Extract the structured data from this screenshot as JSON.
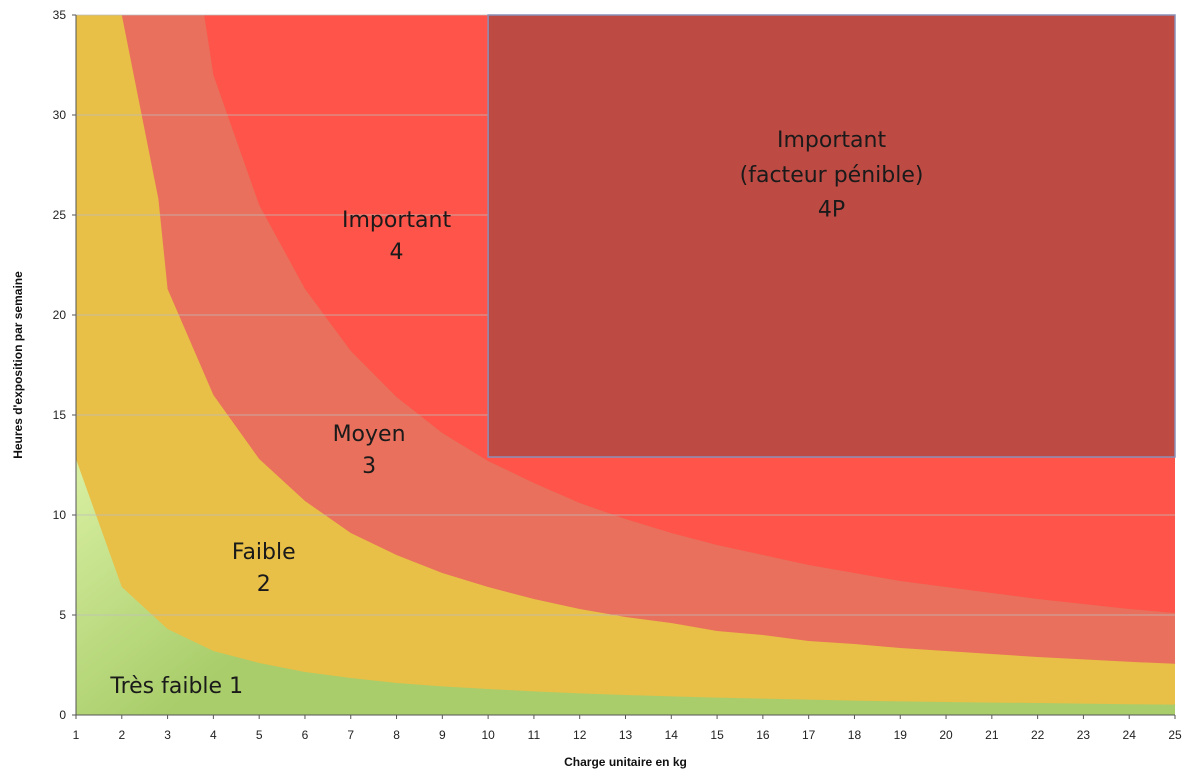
{
  "chart_data": {
    "type": "area",
    "xlabel": "Charge unitaire en kg",
    "ylabel": "Heures d'exposition par semaine",
    "xlim": [
      1,
      25
    ],
    "ylim": [
      0,
      35
    ],
    "x_ticks": [
      1,
      2,
      3,
      4,
      5,
      6,
      7,
      8,
      9,
      10,
      11,
      12,
      13,
      14,
      15,
      16,
      17,
      18,
      19,
      20,
      21,
      22,
      23,
      24,
      25
    ],
    "y_ticks": [
      0,
      5,
      10,
      15,
      20,
      25,
      30,
      35
    ],
    "grid": "horizontal",
    "boundaries": [
      {
        "between": "Très faible 1 / Faible 2",
        "points": [
          [
            1,
            12.8
          ],
          [
            2,
            6.4
          ],
          [
            3,
            4.3
          ],
          [
            4,
            3.2
          ],
          [
            5,
            2.6
          ],
          [
            6,
            2.15
          ],
          [
            7,
            1.85
          ],
          [
            8,
            1.6
          ],
          [
            9,
            1.43
          ],
          [
            10,
            1.3
          ],
          [
            11,
            1.18
          ],
          [
            12,
            1.08
          ],
          [
            13,
            1.0
          ],
          [
            14,
            0.93
          ],
          [
            15,
            0.87
          ],
          [
            16,
            0.82
          ],
          [
            17,
            0.77
          ],
          [
            18,
            0.72
          ],
          [
            19,
            0.68
          ],
          [
            20,
            0.65
          ],
          [
            21,
            0.62
          ],
          [
            22,
            0.6
          ],
          [
            23,
            0.57
          ],
          [
            24,
            0.54
          ],
          [
            25,
            0.52
          ]
        ]
      },
      {
        "between": "Faible 2 / Moyen 3",
        "points": [
          [
            1,
            35
          ],
          [
            2,
            35
          ],
          [
            2.8,
            25.8
          ],
          [
            3,
            21.3
          ],
          [
            4,
            16
          ],
          [
            5,
            12.8
          ],
          [
            6,
            10.7
          ],
          [
            7,
            9.1
          ],
          [
            8,
            8.0
          ],
          [
            9,
            7.1
          ],
          [
            10,
            6.4
          ],
          [
            11,
            5.8
          ],
          [
            12,
            5.3
          ],
          [
            13,
            4.9
          ],
          [
            14,
            4.6
          ],
          [
            15,
            4.2
          ],
          [
            16,
            4.0
          ],
          [
            17,
            3.7
          ],
          [
            18,
            3.55
          ],
          [
            19,
            3.35
          ],
          [
            20,
            3.2
          ],
          [
            21,
            3.05
          ],
          [
            22,
            2.9
          ],
          [
            23,
            2.78
          ],
          [
            24,
            2.66
          ],
          [
            25,
            2.56
          ]
        ]
      },
      {
        "between": "Moyen 3 / Important 4",
        "points": [
          [
            1,
            35
          ],
          [
            1.9,
            35
          ],
          [
            2,
            32
          ],
          [
            3,
            25.8
          ],
          [
            4,
            20.2
          ],
          [
            5,
            16.5
          ],
          [
            6,
            14
          ],
          [
            7,
            12.2
          ],
          [
            8,
            10.9
          ],
          [
            9,
            9.9
          ],
          [
            10,
            9.1
          ],
          [
            11,
            8.4
          ],
          [
            12,
            7.8
          ],
          [
            13,
            7.3
          ],
          [
            14,
            6.9
          ],
          [
            15,
            6.6
          ],
          [
            16,
            6.3
          ],
          [
            17,
            6.05
          ],
          [
            18,
            5.8
          ],
          [
            19,
            5.6
          ],
          [
            20,
            5.4
          ],
          [
            21,
            5.25
          ],
          [
            22,
            5.12
          ],
          [
            23,
            5.0
          ],
          [
            24,
            4.95
          ],
          [
            25,
            5.0
          ]
        ]
      },
      {
        "between": "Important 4 region",
        "points": [
          [
            3.8,
            35
          ],
          [
            4,
            32
          ],
          [
            5,
            25.5
          ],
          [
            6,
            21.3
          ],
          [
            7,
            18.2
          ],
          [
            8,
            15.9
          ],
          [
            9,
            14.1
          ],
          [
            10,
            12.7
          ],
          [
            11,
            11.6
          ],
          [
            12,
            10.6
          ],
          [
            13,
            9.8
          ],
          [
            14,
            9.1
          ],
          [
            15,
            8.5
          ],
          [
            16,
            8.0
          ],
          [
            17,
            7.5
          ],
          [
            18,
            7.1
          ],
          [
            19,
            6.7
          ],
          [
            20,
            6.4
          ],
          [
            21,
            6.1
          ],
          [
            22,
            5.8
          ],
          [
            23,
            5.55
          ],
          [
            24,
            5.3
          ],
          [
            25,
            5.1
          ]
        ]
      }
    ],
    "highlight_rect": {
      "x": [
        10,
        25
      ],
      "y": [
        12.9,
        35
      ],
      "label": [
        "Important",
        "(facteur pénible)",
        "4P"
      ]
    },
    "zones": [
      {
        "label": [
          "Très faible 1"
        ],
        "color": "#a9cd6a",
        "at": [
          3.2,
          1.1
        ]
      },
      {
        "label": [
          "Faible",
          "2"
        ],
        "color": "#e8bf47",
        "at": [
          5.1,
          7.8
        ]
      },
      {
        "label": [
          "Moyen",
          "3"
        ],
        "color": "#e8705c",
        "at": [
          7.4,
          13.7
        ]
      },
      {
        "label": [
          "Important",
          "4"
        ],
        "color": "#fe5449",
        "at": [
          8.0,
          24.4
        ]
      }
    ],
    "colors": {
      "tres_faible_light": "#d9f0a3",
      "tres_faible": "#a9cd6a",
      "faible": "#e8bf47",
      "moyen": "#e8705c",
      "important": "#fe5449",
      "important_4p": "#bd4b44",
      "rect_border": "#8a8fb8"
    }
  }
}
